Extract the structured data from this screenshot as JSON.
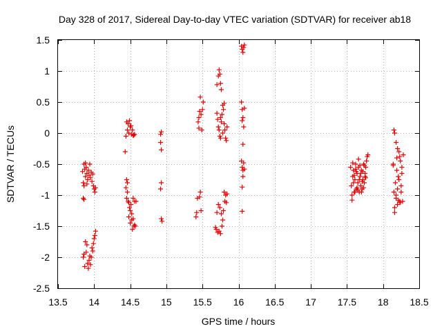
{
  "chart_data": {
    "type": "scatter",
    "title": "Day 328 of 2017, Sidereal Day-to-day VTEC variation (SDTVAR) for receiver ab18",
    "xlabel": "GPS time / hours",
    "ylabel": "SDTVAR / TECUs",
    "xlim": [
      13.5,
      18.5
    ],
    "ylim": [
      -2.5,
      1.5
    ],
    "xticks": [
      13.5,
      14,
      14.5,
      15,
      15.5,
      16,
      16.5,
      17,
      17.5,
      18,
      18.5
    ],
    "xtick_labels": [
      "13.5",
      "14",
      "14.5",
      "15",
      "15.5",
      "16",
      "16.5",
      "17",
      "17.5",
      "18",
      "18.5"
    ],
    "yticks": [
      1.5,
      1,
      0.5,
      0,
      -0.5,
      -1,
      -1.5,
      -2,
      -2.5
    ],
    "ytick_labels": [
      "1.5",
      "1",
      "0.5",
      "0",
      "-0.5",
      "-1",
      "-1.5",
      "-2",
      "-2.5"
    ],
    "grid": true,
    "marker": "+",
    "color": "#e00000",
    "series": [
      {
        "name": "SDTVAR",
        "points": [
          [
            13.84,
            -0.62
          ],
          [
            13.85,
            -0.8
          ],
          [
            13.86,
            -0.5
          ],
          [
            13.87,
            -0.58
          ],
          [
            13.88,
            -0.7
          ],
          [
            13.89,
            -0.55
          ],
          [
            13.9,
            -0.65
          ],
          [
            13.91,
            -0.75
          ],
          [
            13.92,
            -0.6
          ],
          [
            13.93,
            -0.68
          ],
          [
            13.94,
            -0.5
          ],
          [
            13.95,
            -0.72
          ],
          [
            13.96,
            -0.63
          ],
          [
            13.97,
            -0.78
          ],
          [
            13.98,
            -0.66
          ],
          [
            13.99,
            -0.85
          ],
          [
            14.0,
            -0.9
          ],
          [
            14.01,
            -0.95
          ],
          [
            14.02,
            -0.88
          ],
          [
            13.86,
            -1.07
          ],
          [
            13.85,
            -1.05
          ],
          [
            13.86,
            -0.85
          ],
          [
            13.88,
            -0.48
          ],
          [
            13.9,
            -0.82
          ],
          [
            13.85,
            -2.0
          ],
          [
            13.86,
            -1.95
          ],
          [
            13.87,
            -2.15
          ],
          [
            13.88,
            -1.75
          ],
          [
            13.89,
            -1.92
          ],
          [
            13.9,
            -1.8
          ],
          [
            13.91,
            -2.1
          ],
          [
            13.92,
            -2.18
          ],
          [
            13.93,
            -2.05
          ],
          [
            13.94,
            -1.98
          ],
          [
            13.95,
            -2.12
          ],
          [
            13.96,
            -2.0
          ],
          [
            13.97,
            -1.85
          ],
          [
            13.98,
            -1.9
          ],
          [
            13.99,
            -1.78
          ],
          [
            14.0,
            -1.7
          ],
          [
            14.01,
            -1.65
          ],
          [
            14.02,
            -1.58
          ],
          [
            14.43,
            -0.3
          ],
          [
            14.44,
            -0.05
          ],
          [
            14.45,
            0.18
          ],
          [
            14.46,
            0.05
          ],
          [
            14.47,
            0.15
          ],
          [
            14.48,
            0.0
          ],
          [
            14.49,
            0.2
          ],
          [
            14.5,
            0.1
          ],
          [
            14.51,
            0.12
          ],
          [
            14.52,
            -0.02
          ],
          [
            14.53,
            0.05
          ],
          [
            14.54,
            -0.04
          ],
          [
            14.55,
            -0.03
          ],
          [
            14.56,
            -0.02
          ],
          [
            14.44,
            -0.88
          ],
          [
            14.45,
            -0.75
          ],
          [
            14.45,
            -1.05
          ],
          [
            14.46,
            -0.95
          ],
          [
            14.47,
            -1.1
          ],
          [
            14.48,
            -1.35
          ],
          [
            14.49,
            -1.2
          ],
          [
            14.5,
            -1.45
          ],
          [
            14.51,
            -1.15
          ],
          [
            14.52,
            -1.4
          ],
          [
            14.53,
            -1.55
          ],
          [
            14.54,
            -1.05
          ],
          [
            14.55,
            -1.5
          ],
          [
            14.56,
            -1.1
          ],
          [
            14.57,
            -1.5
          ],
          [
            14.58,
            -1.1
          ],
          [
            14.46,
            -0.8
          ],
          [
            14.48,
            -1.12
          ],
          [
            14.5,
            -1.25
          ],
          [
            14.52,
            -1.3
          ],
          [
            14.54,
            -1.38
          ],
          [
            14.56,
            -1.48
          ],
          [
            14.92,
            -0.02
          ],
          [
            14.93,
            0.02
          ],
          [
            14.92,
            -0.15
          ],
          [
            14.93,
            -0.27
          ],
          [
            14.93,
            -0.8
          ],
          [
            14.92,
            -0.9
          ],
          [
            14.93,
            -1.38
          ],
          [
            14.94,
            -1.42
          ],
          [
            15.41,
            -1.35
          ],
          [
            15.42,
            -1.28
          ],
          [
            15.43,
            -1.05
          ],
          [
            15.44,
            0.18
          ],
          [
            15.45,
            0.25
          ],
          [
            15.45,
            0.08
          ],
          [
            15.46,
            0.35
          ],
          [
            15.47,
            0.58
          ],
          [
            15.48,
            0.3
          ],
          [
            15.49,
            0.05
          ],
          [
            15.5,
            0.38
          ],
          [
            15.51,
            0.5
          ],
          [
            15.47,
            -0.95
          ],
          [
            15.48,
            -1.25
          ],
          [
            15.46,
            -1.03
          ],
          [
            15.68,
            -1.52
          ],
          [
            15.69,
            -1.55
          ],
          [
            15.7,
            -1.28
          ],
          [
            15.71,
            -1.6
          ],
          [
            15.72,
            -1.15
          ],
          [
            15.73,
            -1.58
          ],
          [
            15.74,
            -1.2
          ],
          [
            15.75,
            -1.62
          ],
          [
            15.76,
            -1.3
          ],
          [
            15.77,
            -1.5
          ],
          [
            15.78,
            -1.4
          ],
          [
            15.79,
            -1.25
          ],
          [
            15.8,
            -0.95
          ],
          [
            15.81,
            -1.1
          ],
          [
            15.82,
            -1.0
          ],
          [
            15.83,
            -1.12
          ],
          [
            15.84,
            -0.98
          ],
          [
            15.7,
            0.78
          ],
          [
            15.72,
            0.92
          ],
          [
            15.73,
            1.02
          ],
          [
            15.74,
            0.95
          ],
          [
            15.75,
            0.8
          ],
          [
            15.76,
            0.7
          ],
          [
            15.7,
            0.32
          ],
          [
            15.71,
            0.22
          ],
          [
            15.72,
            0.1
          ],
          [
            15.73,
            0.05
          ],
          [
            15.74,
            -0.05
          ],
          [
            15.75,
            0.25
          ],
          [
            15.76,
            0.18
          ],
          [
            15.77,
            0.3
          ],
          [
            15.78,
            0.45
          ],
          [
            15.79,
            0.38
          ],
          [
            15.8,
            0.15
          ],
          [
            15.81,
            0.05
          ],
          [
            15.82,
            -0.08
          ],
          [
            15.83,
            -0.12
          ],
          [
            15.84,
            0.1
          ],
          [
            15.8,
            0.48
          ],
          [
            15.75,
            -0.08
          ],
          [
            15.78,
            0.0
          ],
          [
            16.04,
            1.4
          ],
          [
            16.05,
            1.35
          ],
          [
            16.06,
            1.3
          ],
          [
            16.07,
            1.38
          ],
          [
            16.08,
            1.42
          ],
          [
            16.04,
            0.5
          ],
          [
            16.05,
            0.38
          ],
          [
            16.06,
            0.25
          ],
          [
            16.07,
            0.1
          ],
          [
            16.08,
            0.4
          ],
          [
            16.05,
            0.2
          ],
          [
            16.06,
            -0.18
          ],
          [
            16.04,
            -0.45
          ],
          [
            16.05,
            -0.55
          ],
          [
            16.06,
            -0.6
          ],
          [
            16.07,
            -0.48
          ],
          [
            16.08,
            -0.58
          ],
          [
            16.06,
            -0.7
          ],
          [
            16.05,
            -0.87
          ],
          [
            16.05,
            -1.26
          ],
          [
            17.55,
            -0.55
          ],
          [
            17.56,
            -0.85
          ],
          [
            17.57,
            -1.0
          ],
          [
            17.58,
            -0.7
          ],
          [
            17.59,
            -0.6
          ],
          [
            17.6,
            -0.95
          ],
          [
            17.61,
            -0.75
          ],
          [
            17.62,
            -0.5
          ],
          [
            17.63,
            -0.9
          ],
          [
            17.64,
            -0.65
          ],
          [
            17.65,
            -0.8
          ],
          [
            17.66,
            -0.55
          ],
          [
            17.67,
            -0.95
          ],
          [
            17.68,
            -0.7
          ],
          [
            17.69,
            -0.85
          ],
          [
            17.7,
            -0.6
          ],
          [
            17.71,
            -0.9
          ],
          [
            17.72,
            -0.75
          ],
          [
            17.73,
            -0.5
          ],
          [
            17.74,
            -0.8
          ],
          [
            17.75,
            -0.65
          ],
          [
            17.76,
            -0.55
          ],
          [
            17.77,
            -0.45
          ],
          [
            17.78,
            -0.38
          ],
          [
            17.79,
            -0.35
          ],
          [
            17.57,
            -1.08
          ],
          [
            17.59,
            -0.8
          ],
          [
            17.61,
            -0.95
          ],
          [
            17.63,
            -0.62
          ],
          [
            17.65,
            -0.92
          ],
          [
            17.67,
            -0.75
          ],
          [
            17.69,
            -0.65
          ],
          [
            17.71,
            -0.78
          ],
          [
            17.73,
            -0.88
          ],
          [
            17.75,
            -0.7
          ],
          [
            17.58,
            -0.48
          ],
          [
            17.62,
            -0.58
          ],
          [
            17.66,
            -0.42
          ],
          [
            17.7,
            -0.95
          ],
          [
            17.74,
            -0.52
          ],
          [
            17.6,
            -0.68
          ],
          [
            17.64,
            -0.88
          ],
          [
            17.68,
            -0.52
          ],
          [
            17.72,
            -0.62
          ],
          [
            17.76,
            -0.72
          ],
          [
            18.14,
            -0.5
          ],
          [
            18.15,
            -0.95
          ],
          [
            18.16,
            -1.2
          ],
          [
            18.17,
            -0.8
          ],
          [
            18.18,
            -1.05
          ],
          [
            18.19,
            -0.6
          ],
          [
            18.2,
            -1.15
          ],
          [
            18.21,
            -0.7
          ],
          [
            18.22,
            -0.3
          ],
          [
            18.23,
            -1.1
          ],
          [
            18.24,
            -0.45
          ],
          [
            18.25,
            -0.85
          ],
          [
            18.26,
            -0.65
          ],
          [
            18.27,
            -1.1
          ],
          [
            18.28,
            -0.35
          ],
          [
            18.15,
            0.05
          ],
          [
            18.16,
            0.0
          ],
          [
            18.18,
            -0.15
          ],
          [
            18.2,
            -0.25
          ],
          [
            18.14,
            -0.52
          ],
          [
            18.16,
            -1.28
          ],
          [
            18.18,
            -1.0
          ],
          [
            18.2,
            -0.9
          ],
          [
            18.22,
            -0.75
          ],
          [
            18.24,
            -1.12
          ],
          [
            18.26,
            -0.55
          ],
          [
            18.19,
            -0.4
          ],
          [
            18.23,
            -0.38
          ],
          [
            18.25,
            -0.95
          ],
          [
            18.21,
            -1.08
          ]
        ]
      }
    ]
  }
}
